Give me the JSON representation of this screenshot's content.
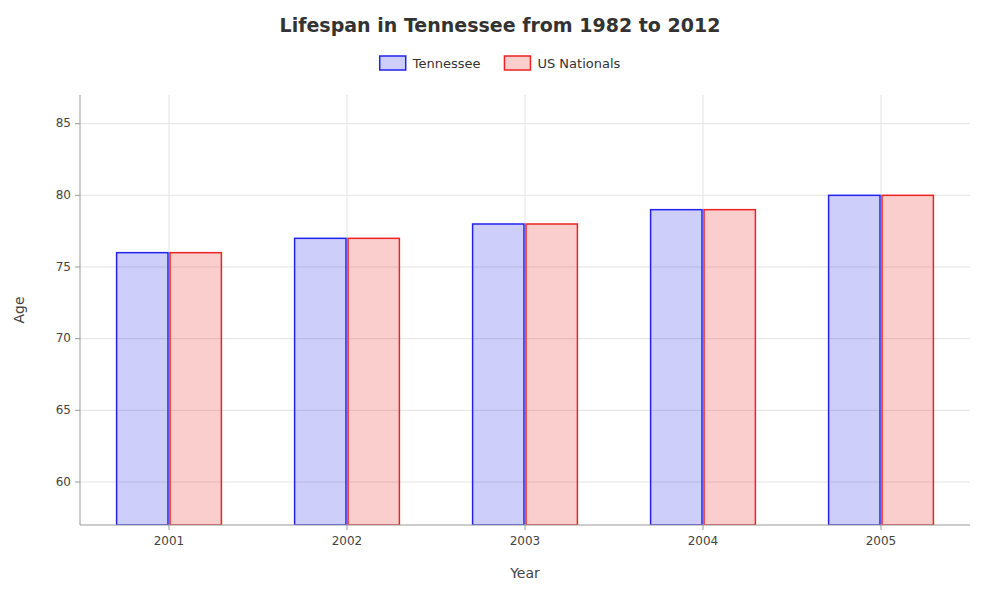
{
  "chart_data": {
    "type": "bar",
    "title": "Lifespan in Tennessee from 1982 to 2012",
    "xlabel": "Year",
    "ylabel": "Age",
    "categories": [
      "2001",
      "2002",
      "2003",
      "2004",
      "2005"
    ],
    "series": [
      {
        "name": "Tennessee",
        "color": "#2222ee",
        "values": [
          76,
          77,
          78,
          79,
          80
        ]
      },
      {
        "name": "US Nationals",
        "color": "#ee2222",
        "values": [
          76,
          77,
          78,
          79,
          80
        ]
      }
    ],
    "ylim": [
      57,
      87
    ],
    "yticks": [
      60,
      65,
      70,
      75,
      80,
      85
    ],
    "grid": true,
    "legend": "top"
  }
}
